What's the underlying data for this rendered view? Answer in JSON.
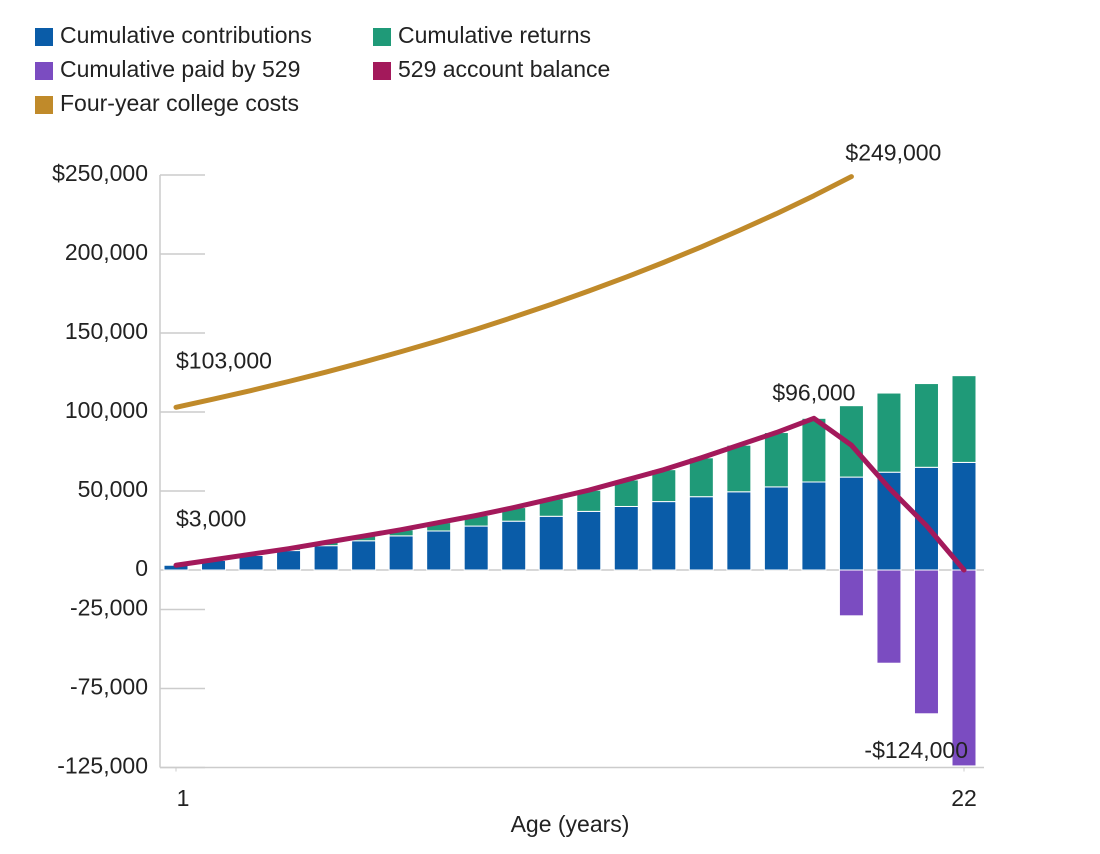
{
  "chart_data": {
    "type": "bar",
    "stacked": true,
    "x_label": "Age (years)",
    "x": [
      1,
      2,
      3,
      4,
      5,
      6,
      7,
      8,
      9,
      10,
      11,
      12,
      13,
      14,
      15,
      16,
      17,
      18,
      19,
      20,
      21,
      22
    ],
    "xlim": [
      1,
      22
    ],
    "xticks": [
      1,
      22
    ],
    "ylim": [
      -125000,
      250000
    ],
    "yticks": [
      {
        "value": 250000,
        "label": "$250,000"
      },
      {
        "value": 200000,
        "label": "200,000"
      },
      {
        "value": 150000,
        "label": "150,000"
      },
      {
        "value": 100000,
        "label": "100,000"
      },
      {
        "value": 50000,
        "label": "50,000"
      },
      0,
      {
        "value": -25000,
        "label": "-25,000"
      },
      {
        "value": -75000,
        "label": "-75,000"
      },
      {
        "value": -125000,
        "label": "-125,000"
      }
    ],
    "legend": "top-left",
    "series": [
      {
        "name": "Cumulative contributions",
        "type": "bar",
        "color": "#0a5ca8",
        "values": [
          3000,
          6100,
          9200,
          12300,
          15400,
          18500,
          21600,
          24700,
          27800,
          30900,
          34000,
          37100,
          40200,
          43300,
          46400,
          49500,
          52600,
          55700,
          58800,
          61900,
          65000,
          68100
        ]
      },
      {
        "name": "Cumulative returns",
        "type": "bar",
        "color": "#1f9a78",
        "values": [
          0,
          400,
          800,
          1200,
          2100,
          3000,
          3900,
          5300,
          6700,
          8600,
          11000,
          13400,
          16800,
          20200,
          24600,
          29500,
          34400,
          40300,
          45200,
          50100,
          53000,
          54900
        ]
      },
      {
        "name": "Cumulative paid by 529",
        "type": "bar",
        "color": "#7b4cc1",
        "values": [
          null,
          null,
          null,
          null,
          null,
          null,
          null,
          null,
          null,
          null,
          null,
          null,
          null,
          null,
          null,
          null,
          null,
          null,
          -29000,
          -59000,
          -91000,
          -124000
        ],
        "value_labels": [
          null,
          null,
          null,
          null,
          null,
          null,
          null,
          null,
          null,
          null,
          null,
          null,
          null,
          null,
          null,
          null,
          null,
          null,
          null,
          null,
          null,
          "-$124,000"
        ]
      },
      {
        "name": "529 account balance",
        "type": "line",
        "color": "#a3195b",
        "values": [
          3000,
          6500,
          10000,
          13500,
          17500,
          21500,
          25500,
          30000,
          34500,
          39500,
          45000,
          50500,
          57000,
          63500,
          71000,
          79000,
          87000,
          96000,
          79000,
          52000,
          28000,
          0
        ],
        "value_labels": [
          "$3,000",
          null,
          null,
          null,
          null,
          null,
          null,
          null,
          null,
          null,
          null,
          null,
          null,
          null,
          null,
          null,
          null,
          "$96,000",
          null,
          null,
          null,
          null
        ]
      },
      {
        "name": "Four-year college costs",
        "type": "line",
        "color": "#c08a2a",
        "values": [
          103000,
          108200,
          113600,
          119300,
          125300,
          131600,
          138200,
          145100,
          152400,
          160100,
          168100,
          176600,
          185400,
          194700,
          204500,
          214800,
          225500,
          236900,
          249000,
          null,
          null,
          null
        ],
        "value_labels": [
          "$103,000",
          null,
          null,
          null,
          null,
          null,
          null,
          null,
          null,
          null,
          null,
          null,
          null,
          null,
          null,
          null,
          null,
          null,
          "$249,000",
          null,
          null,
          null
        ]
      }
    ]
  }
}
